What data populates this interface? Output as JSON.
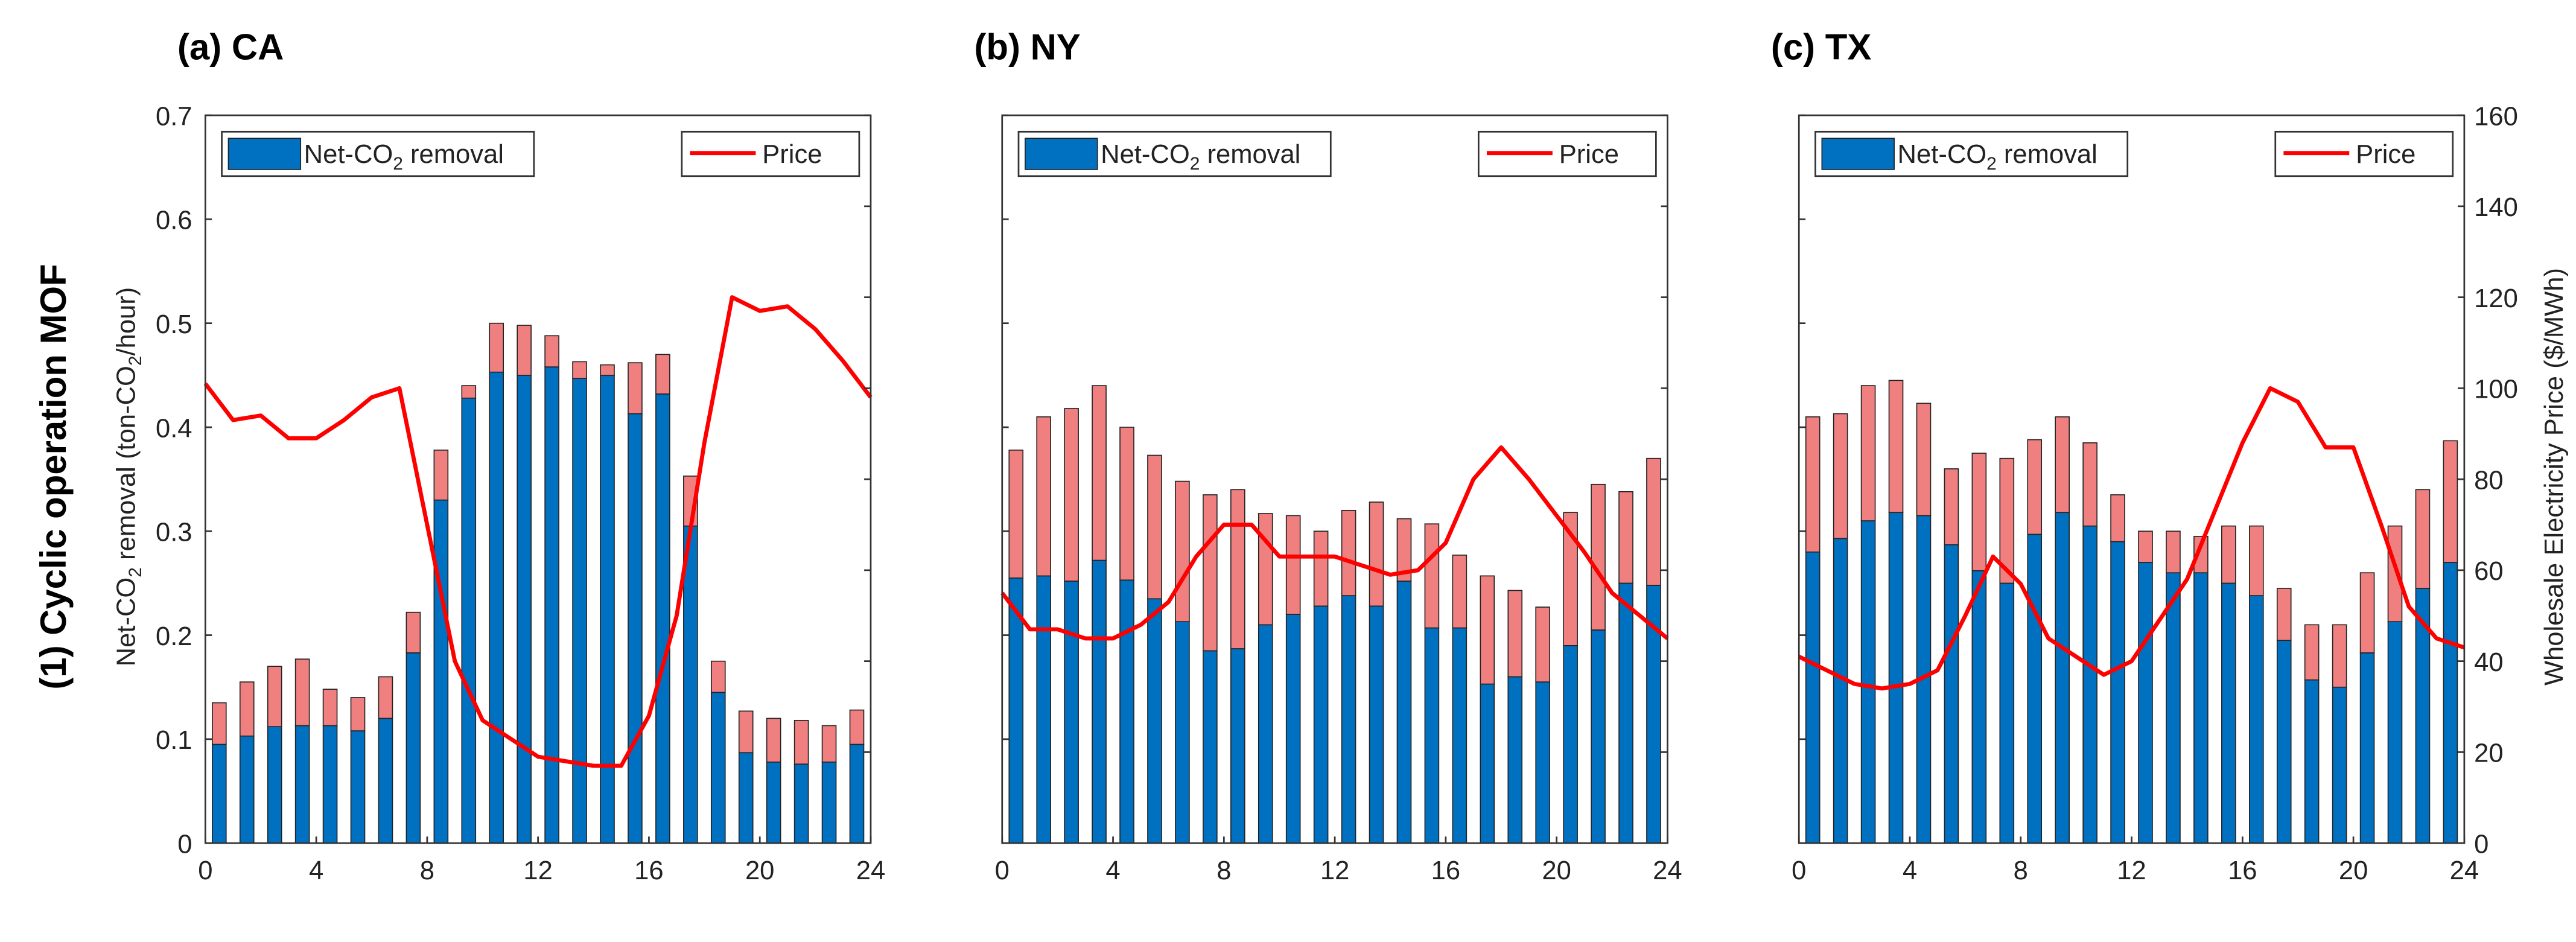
{
  "row_label": "(1) Cyclic operation MOF",
  "chart_data": [
    {
      "type": "bar",
      "title": "(a) CA",
      "ylabel": [
        "Net-CO",
        "2",
        " removal (ton-CO",
        "2",
        "/hour)"
      ],
      "x": [
        0.5,
        1.5,
        2.5,
        3.5,
        4.5,
        5.5,
        6.5,
        7.5,
        8.5,
        9.5,
        10.5,
        11.5,
        12.5,
        13.5,
        14.5,
        15.5,
        16.5,
        17.5,
        18.5,
        19.5,
        20.5,
        21.5,
        22.5,
        23.5
      ],
      "xlim": [
        0,
        24
      ],
      "xticks": [
        0,
        4,
        8,
        12,
        16,
        20,
        24
      ],
      "ylim": [
        0,
        0.7
      ],
      "yticks": [
        0,
        0.1,
        0.2,
        0.3,
        0.4,
        0.5,
        0.6,
        0.7
      ],
      "y2lim": [
        0,
        160
      ],
      "y2ticks": [
        0,
        20,
        40,
        60,
        80,
        100,
        120,
        140,
        160
      ],
      "series": [
        {
          "name": [
            "Net-CO",
            "2",
            " removal"
          ],
          "color": "#0070c0",
          "values": [
            0.095,
            0.103,
            0.112,
            0.113,
            0.113,
            0.108,
            0.12,
            0.183,
            0.33,
            0.428,
            0.453,
            0.45,
            0.458,
            0.447,
            0.45,
            0.413,
            0.432,
            0.305,
            0.145,
            0.087,
            0.078,
            0.076,
            0.078,
            0.095
          ]
        },
        {
          "color": "#f08080",
          "values": [
            0.04,
            0.052,
            0.058,
            0.064,
            0.035,
            0.032,
            0.04,
            0.039,
            0.048,
            0.012,
            0.047,
            0.048,
            0.03,
            0.016,
            0.01,
            0.049,
            0.038,
            0.048,
            0.03,
            0.04,
            0.042,
            0.042,
            0.035,
            0.033
          ]
        },
        {
          "name": "Price",
          "type": "line",
          "axis": "y2",
          "color": "#ff0000",
          "x": [
            0,
            1,
            2,
            3,
            4,
            5,
            6,
            7,
            8,
            9,
            10,
            11,
            12,
            13,
            14,
            15,
            16,
            17,
            18,
            19,
            20,
            21,
            22,
            23,
            24
          ],
          "values": [
            101,
            93,
            94,
            89,
            89,
            93,
            98,
            100,
            70,
            40,
            27,
            23,
            19,
            18,
            17,
            17,
            28,
            50,
            88,
            120,
            117,
            118,
            113,
            106,
            98
          ]
        }
      ]
    },
    {
      "type": "bar",
      "title": "(b) NY",
      "x": [
        0.5,
        1.5,
        2.5,
        3.5,
        4.5,
        5.5,
        6.5,
        7.5,
        8.5,
        9.5,
        10.5,
        11.5,
        12.5,
        13.5,
        14.5,
        15.5,
        16.5,
        17.5,
        18.5,
        19.5,
        20.5,
        21.5,
        22.5,
        23.5
      ],
      "xlim": [
        0,
        24
      ],
      "xticks": [
        0,
        4,
        8,
        12,
        16,
        20,
        24
      ],
      "ylim": [
        0,
        0.7
      ],
      "yticks": [
        0,
        0.1,
        0.2,
        0.3,
        0.4,
        0.5,
        0.6,
        0.7
      ],
      "y2lim": [
        0,
        160
      ],
      "y2ticks": [
        0,
        20,
        40,
        60,
        80,
        100,
        120,
        140,
        160
      ],
      "series": [
        {
          "name": [
            "Net-CO",
            "2",
            " removal"
          ],
          "color": "#0070c0",
          "values": [
            0.255,
            0.257,
            0.252,
            0.272,
            0.253,
            0.235,
            0.213,
            0.185,
            0.187,
            0.21,
            0.22,
            0.228,
            0.238,
            0.228,
            0.252,
            0.207,
            0.207,
            0.153,
            0.16,
            0.155,
            0.19,
            0.205,
            0.25,
            0.248
          ]
        },
        {
          "color": "#f08080",
          "values": [
            0.123,
            0.153,
            0.166,
            0.168,
            0.147,
            0.138,
            0.135,
            0.15,
            0.153,
            0.107,
            0.095,
            0.072,
            0.082,
            0.1,
            0.06,
            0.1,
            0.07,
            0.104,
            0.083,
            0.072,
            0.128,
            0.14,
            0.088,
            0.122
          ]
        },
        {
          "name": "Price",
          "type": "line",
          "axis": "y2",
          "color": "#ff0000",
          "x": [
            0,
            1,
            2,
            3,
            4,
            5,
            6,
            7,
            8,
            9,
            10,
            11,
            12,
            13,
            14,
            15,
            16,
            17,
            18,
            19,
            20,
            21,
            22,
            23,
            24
          ],
          "values": [
            55,
            47,
            47,
            45,
            45,
            48,
            53,
            63,
            70,
            70,
            63,
            63,
            63,
            61,
            59,
            60,
            66,
            80,
            87,
            80,
            72,
            64,
            55,
            50,
            45
          ]
        }
      ]
    },
    {
      "type": "bar",
      "title": "(c) TX",
      "y2label": "Wholesale Electricity Price ($/MWh)",
      "x": [
        0.5,
        1.5,
        2.5,
        3.5,
        4.5,
        5.5,
        6.5,
        7.5,
        8.5,
        9.5,
        10.5,
        11.5,
        12.5,
        13.5,
        14.5,
        15.5,
        16.5,
        17.5,
        18.5,
        19.5,
        20.5,
        21.5,
        22.5,
        23.5
      ],
      "xlim": [
        0,
        24
      ],
      "xticks": [
        0,
        4,
        8,
        12,
        16,
        20,
        24
      ],
      "ylim": [
        0,
        0.7
      ],
      "yticks": [
        0,
        0.1,
        0.2,
        0.3,
        0.4,
        0.5,
        0.6,
        0.7
      ],
      "y2lim": [
        0,
        160
      ],
      "y2ticks": [
        0,
        20,
        40,
        60,
        80,
        100,
        120,
        140,
        160
      ],
      "series": [
        {
          "name": [
            "Net-CO",
            "2",
            " removal"
          ],
          "color": "#0070c0",
          "values": [
            0.28,
            0.293,
            0.31,
            0.318,
            0.315,
            0.287,
            0.262,
            0.25,
            0.297,
            0.318,
            0.305,
            0.29,
            0.27,
            0.26,
            0.26,
            0.25,
            0.238,
            0.195,
            0.157,
            0.15,
            0.183,
            0.213,
            0.245,
            0.27
          ]
        },
        {
          "color": "#f08080",
          "values": [
            0.13,
            0.12,
            0.13,
            0.127,
            0.108,
            0.073,
            0.113,
            0.12,
            0.091,
            0.092,
            0.08,
            0.045,
            0.03,
            0.04,
            0.035,
            0.055,
            0.067,
            0.05,
            0.053,
            0.06,
            0.077,
            0.092,
            0.095,
            0.117
          ]
        },
        {
          "name": "Price",
          "type": "line",
          "axis": "y2",
          "color": "#ff0000",
          "x": [
            0,
            1,
            2,
            3,
            4,
            5,
            6,
            7,
            8,
            9,
            10,
            11,
            12,
            13,
            14,
            15,
            16,
            17,
            18,
            19,
            20,
            21,
            22,
            23,
            24
          ],
          "values": [
            41,
            38,
            35,
            34,
            35,
            38,
            50,
            63,
            57,
            45,
            41,
            37,
            40,
            49,
            58,
            73,
            88,
            100,
            97,
            87,
            87,
            70,
            52,
            45,
            43
          ]
        }
      ]
    }
  ]
}
